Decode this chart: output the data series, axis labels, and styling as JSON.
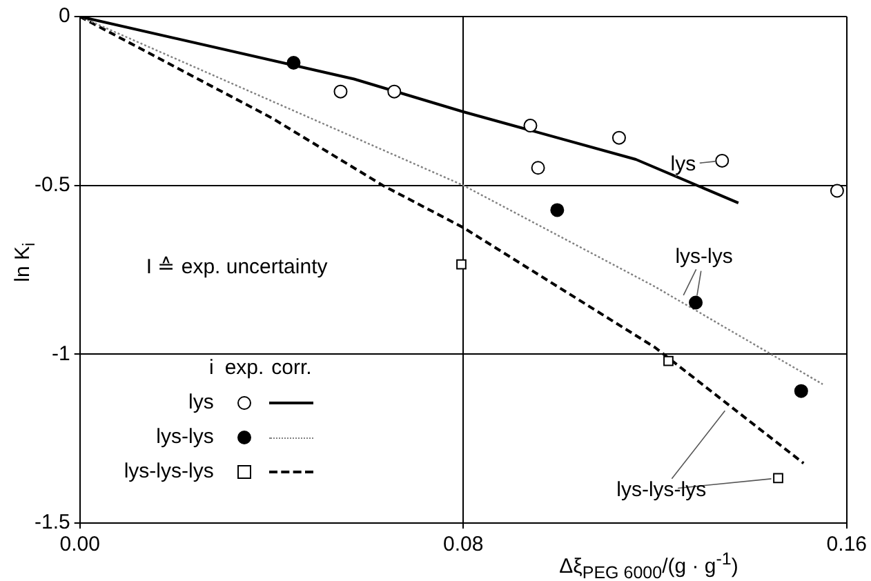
{
  "chart_data": {
    "type": "scatter",
    "xlabel": "Δξ$_{PEG 6000}$/(g · g$^{-1}$)",
    "ylabel": "ln K$_{i}$",
    "legend_title": "i",
    "xlim": [
      0,
      0.16
    ],
    "xticks": [
      {
        "value": 0,
        "label": "0.00"
      },
      0.08,
      0.16
    ],
    "ylim": [
      -1.5,
      0
    ],
    "yticks": [
      -1.5,
      -1,
      -0.5,
      0
    ],
    "grid": true,
    "legend": "bottom left",
    "series": [
      {
        "name": "lys",
        "type": "scatter",
        "marker": "circle",
        "color": "#ffffff",
        "x": [
          0.0544,
          0.0656,
          0.094,
          0.0956,
          0.1125,
          0.134,
          0.158
        ],
        "values": [
          -0.222,
          -0.222,
          -0.323,
          -0.448,
          -0.359,
          -0.427,
          -0.516
        ]
      },
      {
        "name": "lys-lys",
        "type": "scatter",
        "marker": "circle",
        "color": "#000000",
        "x": [
          0.0446,
          0.0996,
          0.1285,
          0.1505
        ],
        "values": [
          -0.137,
          -0.573,
          -0.847,
          -1.109
        ]
      },
      {
        "name": "lys-lys-lys",
        "type": "scatter",
        "marker": "square",
        "color": "#ffffff",
        "x": [
          0.0796,
          0.1228,
          0.1457
        ],
        "values": [
          -0.734,
          -1.02,
          -1.367
        ]
      },
      {
        "name": "lys",
        "type": "line",
        "line_style": "solid",
        "color": "#000000",
        "x": [
          0,
          0.0572,
          0.08,
          0.116,
          0.1374
        ],
        "values": [
          0,
          -0.185,
          -0.282,
          -0.423,
          -0.552
        ]
      },
      {
        "name": "lys-lys",
        "type": "line",
        "line_style": "dotted",
        "color": "#808080",
        "x": [
          0,
          0.04,
          0.08,
          0.12,
          0.155
        ],
        "values": [
          0,
          -0.25,
          -0.5,
          -0.8,
          -1.089
        ]
      },
      {
        "name": "lys-lys-lys",
        "type": "line",
        "line_style": "dashed",
        "color": "#000000",
        "x": [
          0,
          0.04,
          0.0632,
          0.08,
          0.12,
          0.151
        ],
        "values": [
          0,
          -0.3,
          -0.5,
          -0.625,
          -0.98,
          -1.323
        ]
      }
    ],
    "annotations": [
      "I ≙ exp. uncertainty",
      "exp.",
      "corr."
    ]
  }
}
